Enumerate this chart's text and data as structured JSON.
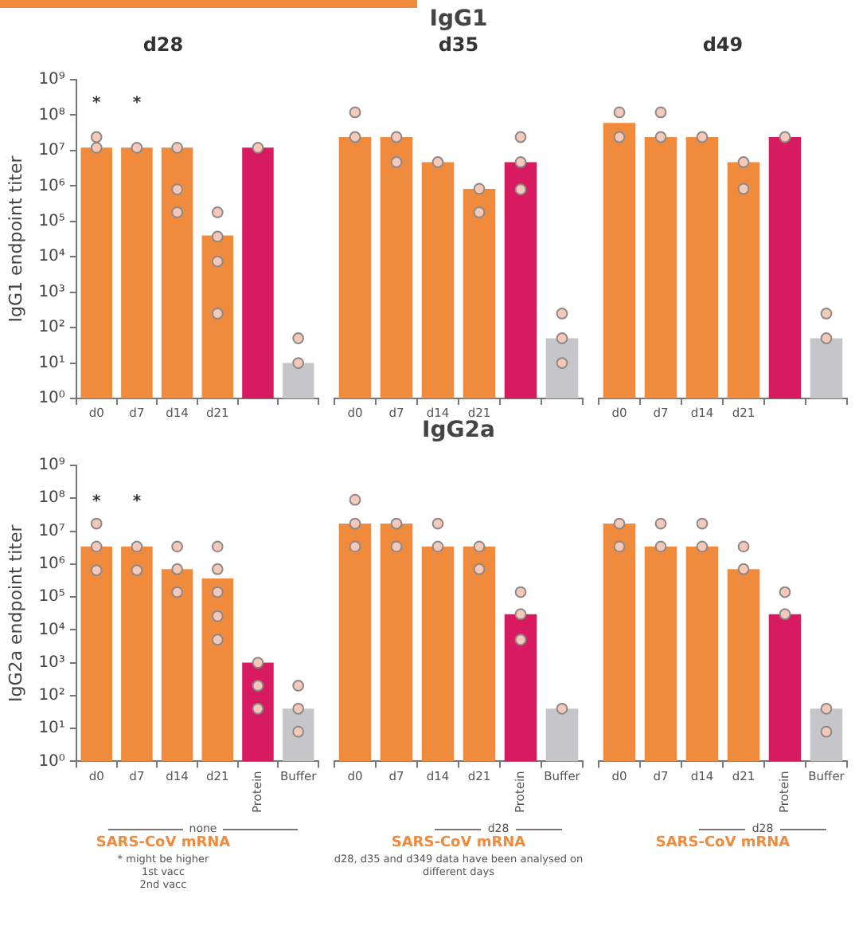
{
  "chart_data": [
    {
      "type": "bar",
      "subtitle": "d28",
      "ylabel": "IgG1 endpoint titer",
      "categories": [
        "d0",
        "d7",
        "d14",
        "d21",
        null,
        null
      ],
      "log": true,
      "grid": false,
      "legend": false,
      "marker": "circle",
      "ylim": [
        1,
        1000000000
      ],
      "yticks": [
        {
          "value": 1,
          "label": "10⁰"
        },
        {
          "value": 10,
          "label": "10¹"
        },
        {
          "value": 100,
          "label": "10²"
        },
        {
          "value": 1000,
          "label": "10³"
        },
        {
          "value": 10000,
          "label": "10⁴"
        },
        {
          "value": 100000,
          "label": "10⁵"
        },
        {
          "value": 1000000,
          "label": "10⁶"
        },
        {
          "value": 10000000,
          "label": "10⁷"
        },
        {
          "value": 100000000,
          "label": "10⁸"
        },
        {
          "value": 1000000000,
          "label": "10⁹"
        }
      ],
      "annotations": [
        {
          "text": "*",
          "x": "d0",
          "y": 12000000
        },
        {
          "text": "*",
          "x": "d7",
          "y": 12000000
        }
      ],
      "series": [
        {
          "type": "bar",
          "colors": [
            "#f08a3c",
            "#f08a3c",
            "#f08a3c",
            "#f08a3c",
            "#d81b60",
            "#c6c6ca"
          ],
          "values": [
            12000000,
            12000000,
            12000000,
            40000,
            12000000,
            10
          ]
        },
        {
          "type": "scatter",
          "color": "#f6c8b8",
          "values": [
            24000000,
            null,
            null,
            180000,
            null,
            50
          ]
        },
        {
          "type": "scatter",
          "color": "#f6c8b8",
          "values": [
            12000000,
            12000000,
            12000000,
            37000,
            12000000,
            10
          ]
        },
        {
          "type": "scatter",
          "color": "#f6c8b8",
          "values": [
            null,
            null,
            800000,
            7400,
            null,
            null
          ]
        },
        {
          "type": "scatter",
          "color": "#f6c8b8",
          "values": [
            null,
            null,
            180000,
            250,
            null,
            null
          ]
        }
      ]
    },
    {
      "type": "bar",
      "title": "IgG1",
      "subtitle": "d35",
      "categories": [
        "d0",
        "d7",
        "d14",
        "d21",
        null,
        null
      ],
      "log": true,
      "grid": false,
      "legend": false,
      "marker": "circle",
      "tick_labels": "x",
      "ylim": [
        1,
        1000000000
      ],
      "series": [
        {
          "type": "bar",
          "colors": [
            "#f08a3c",
            "#f08a3c",
            "#f08a3c",
            "#f08a3c",
            "#d81b60",
            "#c6c6ca"
          ],
          "values": [
            24000000,
            24000000,
            4700000,
            830000,
            4700000,
            50
          ]
        },
        {
          "type": "scatter",
          "color": "#f6c8b8",
          "values": [
            120000000,
            24000000,
            4700000,
            830000,
            24000000,
            250
          ]
        },
        {
          "type": "scatter",
          "color": "#f6c8b8",
          "values": [
            24000000,
            4700000,
            null,
            180000,
            4700000,
            50
          ]
        },
        {
          "type": "scatter",
          "color": "#f6c8b8",
          "values": [
            null,
            null,
            null,
            null,
            800000,
            10
          ]
        }
      ]
    },
    {
      "type": "bar",
      "subtitle": "d49",
      "categories": [
        "d0",
        "d7",
        "d14",
        "d21",
        null,
        null
      ],
      "log": true,
      "grid": false,
      "legend": false,
      "marker": "circle",
      "tick_labels": "x",
      "ylim": [
        1,
        1000000000
      ],
      "series": [
        {
          "type": "bar",
          "colors": [
            "#f08a3c",
            "#f08a3c",
            "#f08a3c",
            "#f08a3c",
            "#d81b60",
            "#c6c6ca"
          ],
          "values": [
            60000000,
            24000000,
            24000000,
            4700000,
            24000000,
            50
          ]
        },
        {
          "type": "scatter",
          "color": "#f6c8b8",
          "values": [
            120000000,
            120000000,
            24000000,
            4700000,
            24000000,
            250
          ]
        },
        {
          "type": "scatter",
          "color": "#f6c8b8",
          "values": [
            24000000,
            24000000,
            null,
            830000,
            null,
            50
          ]
        }
      ]
    },
    {
      "type": "bar",
      "ylabel": "IgG2a endpoint titer",
      "xlabel": "SARS-CoV mRNA",
      "categories": [
        "d0",
        "d7",
        "d14",
        "d21",
        "Protein",
        "Buffer"
      ],
      "log": true,
      "grid": false,
      "legend": false,
      "marker": "circle",
      "ylim": [
        1,
        1000000000
      ],
      "yticks": [
        {
          "value": 1,
          "label": "10⁰"
        },
        {
          "value": 10,
          "label": "10¹"
        },
        {
          "value": 100,
          "label": "10²"
        },
        {
          "value": 1000,
          "label": "10³"
        },
        {
          "value": 10000,
          "label": "10⁴"
        },
        {
          "value": 100000,
          "label": "10⁵"
        },
        {
          "value": 1000000,
          "label": "10⁶"
        },
        {
          "value": 10000000,
          "label": "10⁷"
        },
        {
          "value": 100000000,
          "label": "10⁸"
        },
        {
          "value": 1000000000,
          "label": "10⁹"
        }
      ],
      "annotations": [
        "none",
        "* might be higher",
        "1st vacc",
        "2nd vacc",
        {
          "text": "*",
          "x": "d0",
          "y": 3400000
        },
        {
          "text": "*",
          "x": "d7",
          "y": 3400000
        }
      ],
      "series": [
        {
          "type": "bar",
          "colors": [
            "#f08a3c",
            "#f08a3c",
            "#f08a3c",
            "#f08a3c",
            "#d81b60",
            "#c6c6ca"
          ],
          "values": [
            3400000,
            3400000,
            700000,
            370000,
            1000,
            40
          ]
        },
        {
          "type": "scatter",
          "color": "#f6c8b8",
          "values": [
            17000000,
            3400000,
            3400000,
            3400000,
            1000,
            200
          ]
        },
        {
          "type": "scatter",
          "color": "#f6c8b8",
          "values": [
            3400000,
            650000,
            700000,
            700000,
            200,
            40
          ]
        },
        {
          "type": "scatter",
          "color": "#f6c8b8",
          "values": [
            650000,
            null,
            140000,
            140000,
            40,
            8
          ]
        },
        {
          "type": "scatter",
          "color": "#f6c8b8",
          "values": [
            null,
            null,
            null,
            26000,
            null,
            null
          ]
        },
        {
          "type": "scatter",
          "color": "#f6c8b8",
          "values": [
            null,
            null,
            null,
            5000,
            null,
            null
          ]
        }
      ]
    },
    {
      "type": "bar",
      "title": "IgG2a",
      "xlabel": "SARS-CoV mRNA",
      "categories": [
        "d0",
        "d7",
        "d14",
        "d21",
        "Protein",
        "Buffer"
      ],
      "log": true,
      "grid": false,
      "legend": false,
      "marker": "circle",
      "tick_labels": "x",
      "ylim": [
        1,
        1000000000
      ],
      "annotations": [
        "d28",
        "d28, d35 and d349 data have been analysed on different days"
      ],
      "series": [
        {
          "type": "bar",
          "colors": [
            "#f08a3c",
            "#f08a3c",
            "#f08a3c",
            "#f08a3c",
            "#d81b60",
            "#c6c6ca"
          ],
          "values": [
            17000000,
            17000000,
            3400000,
            3400000,
            30000,
            40
          ]
        },
        {
          "type": "scatter",
          "color": "#f6c8b8",
          "values": [
            90000000,
            17000000,
            17000000,
            3400000,
            140000,
            40
          ]
        },
        {
          "type": "scatter",
          "color": "#f6c8b8",
          "values": [
            17000000,
            3400000,
            3400000,
            700000,
            30000,
            null
          ]
        },
        {
          "type": "scatter",
          "color": "#f6c8b8",
          "values": [
            3400000,
            null,
            null,
            null,
            5000,
            null
          ]
        }
      ]
    },
    {
      "type": "bar",
      "xlabel": "SARS-CoV mRNA",
      "categories": [
        "d0",
        "d7",
        "d14",
        "d21",
        "Protein",
        "Buffer"
      ],
      "log": true,
      "grid": false,
      "legend": false,
      "marker": "circle",
      "tick_labels": "x",
      "ylim": [
        1,
        1000000000
      ],
      "annotations": [
        "d28"
      ],
      "series": [
        {
          "type": "bar",
          "colors": [
            "#f08a3c",
            "#f08a3c",
            "#f08a3c",
            "#f08a3c",
            "#d81b60",
            "#c6c6ca"
          ],
          "values": [
            17000000,
            3400000,
            3400000,
            700000,
            30000,
            40
          ]
        },
        {
          "type": "scatter",
          "color": "#f6c8b8",
          "values": [
            17000000,
            17000000,
            17000000,
            3400000,
            140000,
            40
          ]
        },
        {
          "type": "scatter",
          "color": "#f6c8b8",
          "values": [
            3400000,
            3400000,
            3400000,
            700000,
            30000,
            8
          ]
        }
      ]
    }
  ]
}
